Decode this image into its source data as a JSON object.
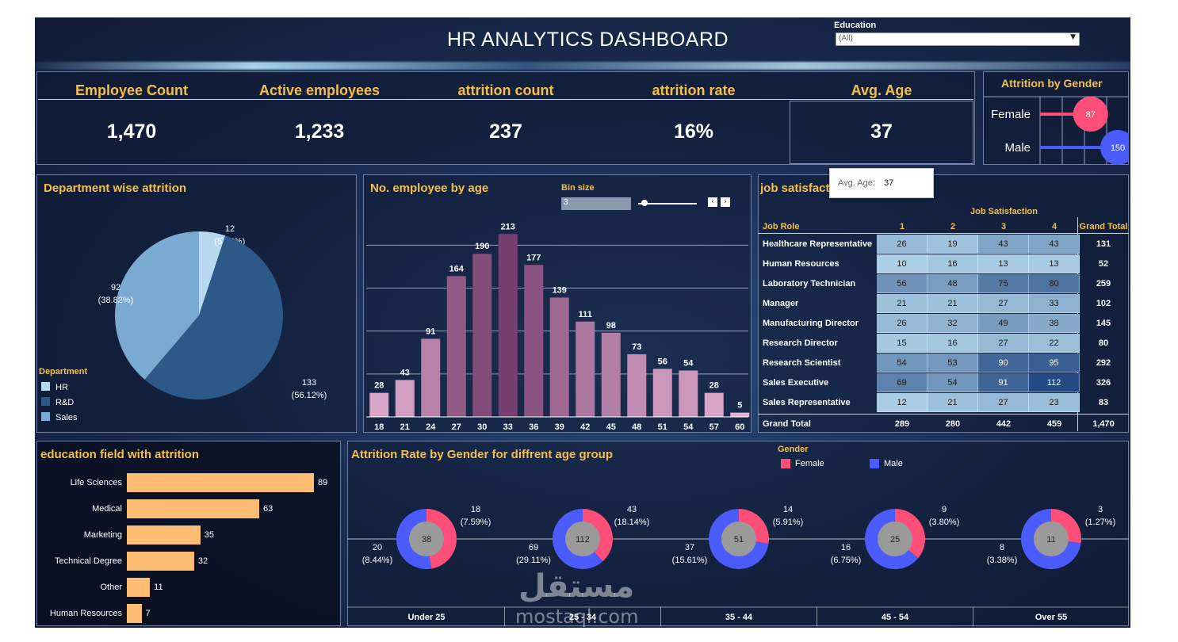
{
  "header": {
    "title": "HR ANALYTICS DASHBOARD"
  },
  "filter": {
    "label": "Education",
    "value": "(All)"
  },
  "kpis": [
    {
      "label": "Employee Count",
      "value": "1,470"
    },
    {
      "label": "Active employees",
      "value": "1,233"
    },
    {
      "label": "attrition count",
      "value": "237"
    },
    {
      "label": "attrition rate",
      "value": "16%"
    },
    {
      "label": "Avg. Age",
      "value": "37"
    }
  ],
  "tooltip": {
    "label": "Avg. Age:",
    "value": "37"
  },
  "gender_panel": {
    "title": "Attrition by Gender",
    "rows": [
      {
        "label": "Female",
        "value": 87,
        "color": "#ff4f79"
      },
      {
        "label": "Male",
        "value": 150,
        "color": "#4b5cff"
      }
    ]
  },
  "dept_panel": {
    "title": "Department wise attrition",
    "legend_title": "Department",
    "chart_data": {
      "type": "pie",
      "labels": [
        "HR",
        "R&D",
        "Sales"
      ],
      "values": [
        12,
        133,
        92
      ],
      "value_labels": [
        "12",
        "133",
        "92"
      ],
      "percent_labels": [
        "(5.06%)",
        "(56.12%)",
        "(38.82%)"
      ],
      "colors": [
        "#b6d9ef",
        "#2d5988",
        "#7aa9d2"
      ]
    }
  },
  "age_panel": {
    "title": "No. employee by age",
    "bin_label": "Bin size",
    "bin_value": "3",
    "chart_data": {
      "type": "bar",
      "categories": [
        "18",
        "21",
        "24",
        "27",
        "30",
        "33",
        "36",
        "39",
        "42",
        "45",
        "48",
        "51",
        "54",
        "57",
        "60"
      ],
      "values": [
        28,
        43,
        91,
        164,
        190,
        213,
        177,
        139,
        111,
        98,
        73,
        56,
        54,
        28,
        5
      ],
      "ylim": [
        0,
        240
      ]
    }
  },
  "job_panel": {
    "title": "job satisfaction",
    "col_header": "Job Satisfaction",
    "row_header": "Job Role",
    "columns": [
      "1",
      "2",
      "3",
      "4"
    ],
    "grand_total_label": "Grand Total",
    "chart_data": {
      "type": "heatmap",
      "rows": [
        {
          "role": "Healthcare Representative",
          "values": [
            26,
            19,
            43,
            43
          ],
          "total": "131"
        },
        {
          "role": "Human Resources",
          "values": [
            10,
            16,
            13,
            13
          ],
          "total": "52"
        },
        {
          "role": "Laboratory Technician",
          "values": [
            56,
            48,
            75,
            80
          ],
          "total": "259"
        },
        {
          "role": "Manager",
          "values": [
            21,
            21,
            27,
            33
          ],
          "total": "102"
        },
        {
          "role": "Manufacturing Director",
          "values": [
            26,
            32,
            49,
            38
          ],
          "total": "145"
        },
        {
          "role": "Research Director",
          "values": [
            15,
            16,
            27,
            22
          ],
          "total": "80"
        },
        {
          "role": "Research Scientist",
          "values": [
            54,
            53,
            90,
            95
          ],
          "total": "292"
        },
        {
          "role": "Sales Executive",
          "values": [
            69,
            54,
            91,
            112
          ],
          "total": "326"
        },
        {
          "role": "Sales Representative",
          "values": [
            12,
            21,
            27,
            23
          ],
          "total": "83"
        }
      ],
      "column_totals": [
        "289",
        "280",
        "442",
        "459"
      ],
      "overall_total": "1,470"
    }
  },
  "edu_panel": {
    "title": "education field with attrition",
    "chart_data": {
      "type": "bar",
      "categories": [
        "Life Sciences",
        "Medical",
        "Marketing",
        "Technical Degree",
        "Other",
        "Human Resources"
      ],
      "values": [
        89,
        63,
        35,
        32,
        11,
        7
      ]
    }
  },
  "age_gender_panel": {
    "title": "Attrition Rate by Gender for diffrent age group",
    "legend_title": "Gender",
    "legend": [
      {
        "label": "Female",
        "color": "#ff4f79"
      },
      {
        "label": "Male",
        "color": "#4b5cff"
      }
    ],
    "chart_data": {
      "type": "pie",
      "groups": [
        {
          "name": "Under 25",
          "total": "38",
          "female": 18,
          "female_label": "18",
          "female_pct": "(7.59%)",
          "male": 20,
          "male_label": "20",
          "male_pct": "(8.44%)"
        },
        {
          "name": "25 - 34",
          "total": "112",
          "female": 43,
          "female_label": "43",
          "female_pct": "(18.14%)",
          "male": 69,
          "male_label": "69",
          "male_pct": "(29.11%)"
        },
        {
          "name": "35 - 44",
          "total": "51",
          "female": 14,
          "female_label": "14",
          "female_pct": "(5.91%)",
          "male": 37,
          "male_label": "37",
          "male_pct": "(15.61%)"
        },
        {
          "name": "45 - 54",
          "total": "25",
          "female": 9,
          "female_label": "9",
          "female_pct": "(3.80%)",
          "male": 16,
          "male_label": "16",
          "male_pct": "(6.75%)"
        },
        {
          "name": "Over 55",
          "total": "11",
          "female": 3,
          "female_label": "3",
          "female_pct": "(1.27%)",
          "male": 8,
          "male_label": "8",
          "male_pct": "(3.38%)"
        }
      ]
    }
  },
  "watermark": {
    "arabic": "مستقل",
    "latin": "mostaql.com"
  }
}
